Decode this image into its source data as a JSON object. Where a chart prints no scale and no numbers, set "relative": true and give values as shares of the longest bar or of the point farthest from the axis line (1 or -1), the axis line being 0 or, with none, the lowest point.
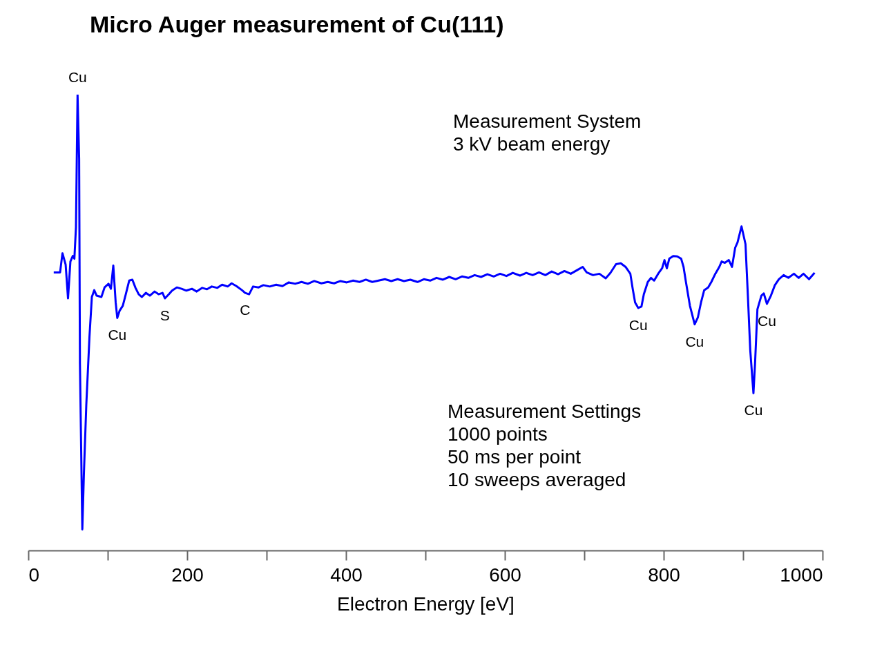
{
  "chart_data": {
    "type": "line",
    "title": "Micro Auger measurement of Cu(111)",
    "xlabel": "Electron Energy [eV]",
    "relative": true,
    "xlim": [
      0,
      1000
    ],
    "xticks": [
      0,
      {
        "value": 100,
        "label": null
      },
      200,
      {
        "value": 300,
        "label": null
      },
      400,
      {
        "value": 500,
        "label": null
      },
      600,
      {
        "value": 700,
        "label": null
      },
      800,
      {
        "value": 900,
        "label": null
      },
      1000
    ],
    "x": [
      32,
      40,
      43,
      47,
      50,
      53,
      56,
      58,
      60,
      62,
      64,
      65,
      68,
      70,
      73,
      75,
      77,
      80,
      83,
      86,
      92,
      96,
      101,
      104,
      107,
      110,
      112,
      115,
      119,
      123,
      127,
      131,
      135,
      139,
      143,
      148,
      153,
      159,
      164,
      169,
      172,
      177,
      181,
      187,
      193,
      199,
      206,
      212,
      219,
      225,
      231,
      238,
      244,
      251,
      256,
      262,
      269,
      273,
      278,
      283,
      290,
      296,
      304,
      312,
      320,
      328,
      336,
      344,
      352,
      360,
      369,
      377,
      385,
      393,
      401,
      409,
      417,
      425,
      433,
      441,
      449,
      457,
      465,
      473,
      481,
      490,
      498,
      506,
      514,
      522,
      530,
      538,
      546,
      554,
      562,
      570,
      578,
      586,
      594,
      602,
      610,
      619,
      627,
      635,
      643,
      651,
      659,
      667,
      675,
      683,
      691,
      698,
      703,
      711,
      719,
      727,
      733,
      740,
      746,
      752,
      758,
      761,
      764,
      768,
      772,
      775,
      780,
      784,
      788,
      793,
      798,
      801,
      804,
      807,
      812,
      817,
      822,
      825,
      828,
      833,
      839,
      843,
      847,
      851,
      856,
      860,
      865,
      870,
      873,
      877,
      882,
      886,
      890,
      893,
      898,
      903,
      906,
      909,
      913,
      915,
      918,
      923,
      926,
      930,
      935,
      940,
      945,
      951,
      957,
      964,
      970,
      976,
      983,
      990
    ],
    "series": [
      {
        "color": "#0000ff",
        "values": [
          0.61,
          0.61,
          0.652,
          0.627,
          0.553,
          0.634,
          0.646,
          0.64,
          0.709,
          1.0,
          0.859,
          0.409,
          0.046,
          0.169,
          0.319,
          0.394,
          0.469,
          0.556,
          0.571,
          0.559,
          0.556,
          0.577,
          0.585,
          0.574,
          0.625,
          0.544,
          0.51,
          0.526,
          0.537,
          0.564,
          0.592,
          0.594,
          0.576,
          0.562,
          0.556,
          0.565,
          0.559,
          0.568,
          0.562,
          0.565,
          0.553,
          0.562,
          0.57,
          0.577,
          0.574,
          0.57,
          0.574,
          0.568,
          0.576,
          0.573,
          0.579,
          0.576,
          0.583,
          0.579,
          0.586,
          0.58,
          0.571,
          0.565,
          0.562,
          0.579,
          0.577,
          0.582,
          0.579,
          0.583,
          0.58,
          0.588,
          0.585,
          0.589,
          0.585,
          0.591,
          0.586,
          0.589,
          0.586,
          0.591,
          0.588,
          0.592,
          0.589,
          0.594,
          0.589,
          0.592,
          0.595,
          0.591,
          0.595,
          0.591,
          0.594,
          0.589,
          0.595,
          0.592,
          0.598,
          0.594,
          0.6,
          0.595,
          0.601,
          0.598,
          0.604,
          0.6,
          0.606,
          0.601,
          0.607,
          0.602,
          0.609,
          0.603,
          0.609,
          0.604,
          0.61,
          0.604,
          0.612,
          0.606,
          0.613,
          0.607,
          0.615,
          0.622,
          0.61,
          0.604,
          0.607,
          0.597,
          0.609,
          0.628,
          0.63,
          0.622,
          0.607,
          0.574,
          0.544,
          0.532,
          0.535,
          0.562,
          0.589,
          0.598,
          0.592,
          0.607,
          0.619,
          0.637,
          0.619,
          0.64,
          0.646,
          0.645,
          0.64,
          0.622,
          0.589,
          0.537,
          0.496,
          0.511,
          0.544,
          0.571,
          0.577,
          0.589,
          0.607,
          0.622,
          0.634,
          0.631,
          0.637,
          0.622,
          0.664,
          0.676,
          0.711,
          0.672,
          0.559,
          0.439,
          0.345,
          0.409,
          0.529,
          0.559,
          0.564,
          0.541,
          0.559,
          0.582,
          0.595,
          0.604,
          0.598,
          0.607,
          0.598,
          0.607,
          0.595,
          0.609
        ]
      }
    ],
    "annotations": [
      {
        "text": "Cu",
        "x": 62,
        "y": 1.0
      },
      {
        "text": "Cu",
        "x": 112,
        "y": 0.51
      },
      {
        "text": "S",
        "x": 172,
        "y": 0.553
      },
      {
        "text": "C",
        "x": 273,
        "y": 0.565
      },
      {
        "text": "Cu",
        "x": 768,
        "y": 0.532
      },
      {
        "text": "Cu",
        "x": 839,
        "y": 0.496
      },
      {
        "text": "Cu",
        "x": 913,
        "y": 0.345
      },
      {
        "text": "Cu",
        "x": 930,
        "y": 0.541
      },
      "Measurement System",
      "3 kV beam energy",
      "Measurement Settings",
      "1000 points",
      "50 ms per point",
      "10 sweeps averaged"
    ],
    "grid": false,
    "line_style": "solid",
    "marker": "none"
  }
}
